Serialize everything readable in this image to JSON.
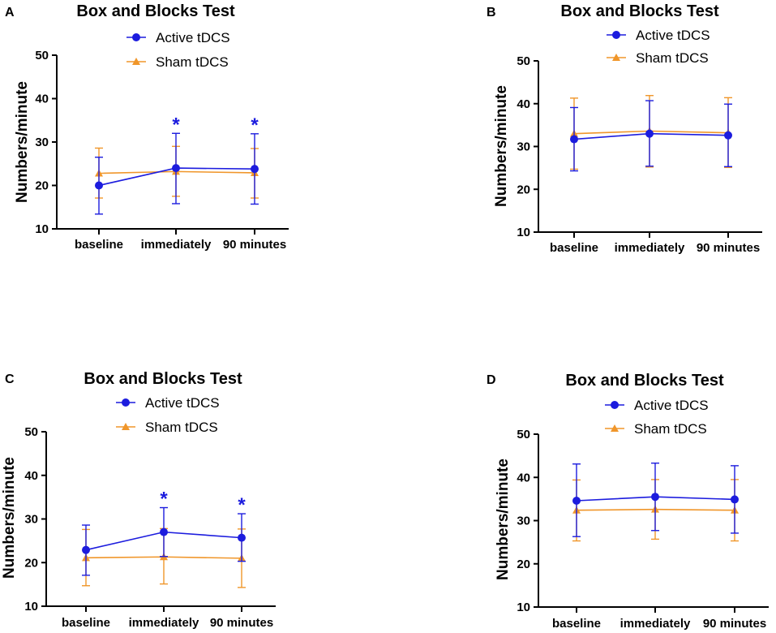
{
  "colors": {
    "active": "#1c1cde",
    "sham": "#f0962a",
    "axis": "#000000"
  },
  "chart_data": [
    {
      "panel": "A",
      "type": "line",
      "title": "Box and Blocks Test",
      "ylabel": "Numbers/minute",
      "ylim": [
        10,
        50
      ],
      "yticks": [
        10,
        20,
        30,
        40,
        50
      ],
      "categories": [
        "baseline",
        "immediately",
        "90 minutes"
      ],
      "series": [
        {
          "name": "Active tDCS",
          "marker": "circle",
          "values": [
            20.0,
            24.0,
            23.8
          ],
          "err_low": [
            13.4,
            15.8,
            15.7
          ],
          "err_high": [
            26.5,
            32.0,
            31.9
          ],
          "stars": [
            false,
            true,
            true
          ]
        },
        {
          "name": "Sham tDCS",
          "marker": "triangle",
          "values": [
            22.8,
            23.2,
            22.9
          ],
          "err_low": [
            17.1,
            17.5,
            17.1
          ],
          "err_high": [
            28.6,
            29.0,
            28.5
          ],
          "stars": [
            false,
            false,
            false
          ]
        }
      ],
      "star_label": "*"
    },
    {
      "panel": "B",
      "type": "line",
      "title": "Box and Blocks Test",
      "ylabel": "Numbers/minute",
      "ylim": [
        10,
        50
      ],
      "yticks": [
        10,
        20,
        30,
        40,
        50
      ],
      "categories": [
        "baseline",
        "immediately",
        "90 minutes"
      ],
      "series": [
        {
          "name": "Active tDCS",
          "marker": "circle",
          "values": [
            31.7,
            33.0,
            32.6
          ],
          "err_low": [
            24.3,
            25.4,
            25.3
          ],
          "err_high": [
            39.1,
            40.7,
            39.9
          ],
          "stars": [
            false,
            false,
            false
          ]
        },
        {
          "name": "Sham tDCS",
          "marker": "triangle",
          "values": [
            33.0,
            33.6,
            33.2
          ],
          "err_low": [
            24.7,
            25.2,
            25.1
          ],
          "err_high": [
            41.3,
            41.9,
            41.4
          ],
          "stars": [
            false,
            false,
            false
          ]
        }
      ],
      "star_label": "*"
    },
    {
      "panel": "C",
      "type": "line",
      "title": "Box and Blocks Test",
      "ylabel": "Numbers/minute",
      "ylim": [
        10,
        50
      ],
      "yticks": [
        10,
        20,
        30,
        40,
        50
      ],
      "categories": [
        "baseline",
        "immediately",
        "90 minutes"
      ],
      "series": [
        {
          "name": "Active tDCS",
          "marker": "circle",
          "values": [
            22.9,
            27.0,
            25.7
          ],
          "err_low": [
            17.1,
            21.4,
            20.3
          ],
          "err_high": [
            28.6,
            32.6,
            31.2
          ],
          "stars": [
            false,
            true,
            true
          ]
        },
        {
          "name": "Sham tDCS",
          "marker": "triangle",
          "values": [
            21.1,
            21.3,
            21.0
          ],
          "err_low": [
            14.7,
            15.1,
            14.3
          ],
          "err_high": [
            27.6,
            27.8,
            27.7
          ],
          "stars": [
            false,
            false,
            false
          ]
        }
      ],
      "star_label": "*"
    },
    {
      "panel": "D",
      "type": "line",
      "title": "Box and Blocks Test",
      "ylabel": "Numbers/minute",
      "ylim": [
        10,
        50
      ],
      "yticks": [
        10,
        20,
        30,
        40,
        50
      ],
      "categories": [
        "baseline",
        "immediately",
        "90 minutes"
      ],
      "series": [
        {
          "name": "Active tDCS",
          "marker": "circle",
          "values": [
            34.6,
            35.5,
            34.9
          ],
          "err_low": [
            26.3,
            27.7,
            27.1
          ],
          "err_high": [
            43.1,
            43.3,
            42.7
          ],
          "stars": [
            false,
            false,
            false
          ]
        },
        {
          "name": "Sham tDCS",
          "marker": "triangle",
          "values": [
            32.4,
            32.6,
            32.4
          ],
          "err_low": [
            25.3,
            25.7,
            25.3
          ],
          "err_high": [
            39.4,
            39.5,
            39.5
          ],
          "stars": [
            false,
            false,
            false
          ]
        }
      ],
      "star_label": "*"
    }
  ]
}
